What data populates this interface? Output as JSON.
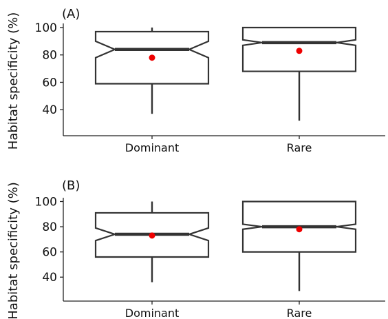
{
  "chart_data": [
    {
      "type": "boxplot",
      "panel_label": "(A)",
      "ylabel": "Habitat specificity (%)",
      "ylim": [
        21,
        103
      ],
      "yticks": [
        40,
        60,
        80,
        100
      ],
      "notched": true,
      "categories": [
        "Dominant",
        "Rare"
      ],
      "boxes": [
        {
          "category": "Dominant",
          "whisker_low": 37,
          "q1": 59,
          "median": 84,
          "q3": 97,
          "whisker_high": 100,
          "notch_low": 78,
          "notch_high": 90,
          "mean": 78
        },
        {
          "category": "Rare",
          "whisker_low": 32,
          "q1": 68,
          "median": 89,
          "q3": 100,
          "whisker_high": 100,
          "notch_low": 87,
          "notch_high": 91,
          "mean": 83
        }
      ],
      "mean_color": "#ee0000"
    },
    {
      "type": "boxplot",
      "panel_label": "(B)",
      "ylabel": "Habitat specificity (%)",
      "ylim": [
        21,
        103
      ],
      "yticks": [
        40,
        60,
        80,
        100
      ],
      "notched": true,
      "categories": [
        "Dominant",
        "Rare"
      ],
      "boxes": [
        {
          "category": "Dominant",
          "whisker_low": 36,
          "q1": 56,
          "median": 74,
          "q3": 91,
          "whisker_high": 100,
          "notch_low": 69,
          "notch_high": 79,
          "mean": 73
        },
        {
          "category": "Rare",
          "whisker_low": 29,
          "q1": 60,
          "median": 80,
          "q3": 100,
          "whisker_high": 100,
          "notch_low": 78,
          "notch_high": 82,
          "mean": 78
        }
      ],
      "mean_color": "#ee0000"
    }
  ]
}
